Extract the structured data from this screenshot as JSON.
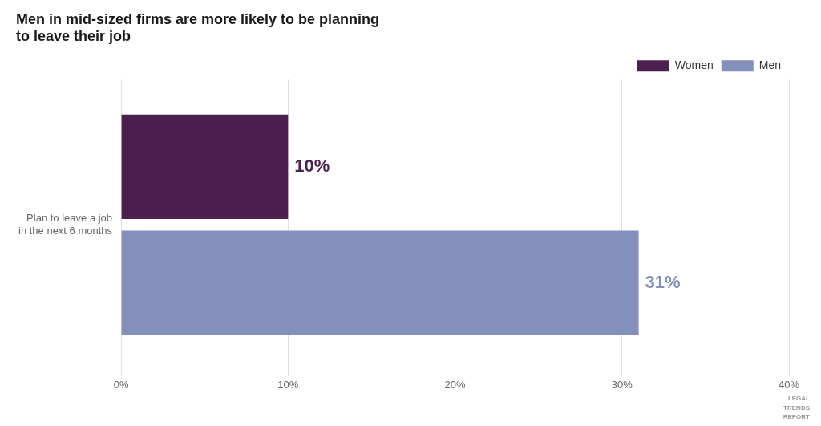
{
  "chart_data": {
    "type": "bar",
    "orientation": "horizontal",
    "title": "Men in mid-sized firms are more likely to be planning\nto leave their job",
    "categories": [
      "Plan to leave a job\nin the next 6 months"
    ],
    "series": [
      {
        "name": "Women",
        "color": "#4b1f4e",
        "values": [
          10
        ],
        "value_labels": [
          "10%"
        ]
      },
      {
        "name": "Men",
        "color": "#8490bc",
        "values": [
          31
        ],
        "value_labels": [
          "31%"
        ]
      }
    ],
    "xlim": [
      0,
      40
    ],
    "xticks": [
      {
        "value": 0,
        "label": "0%"
      },
      {
        "value": 10,
        "label": "10%"
      },
      {
        "value": 20,
        "label": "20%"
      },
      {
        "value": 30,
        "label": "30%"
      },
      {
        "value": 40,
        "label": "40%"
      }
    ],
    "grid": true,
    "legend": "top-right",
    "data_labels": true,
    "annotations": [
      "LEGAL\nTRENDS\nREPORT"
    ]
  }
}
